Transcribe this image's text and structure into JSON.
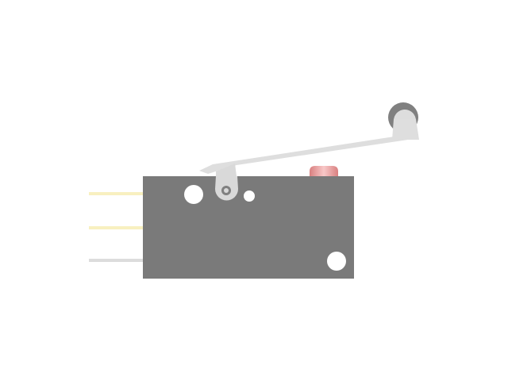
{
  "component": {
    "kind": "micro-switch-with-roller-lever",
    "icon": "roller-lever-microswitch-icon"
  },
  "colors": {
    "background": "#ffffff",
    "body": "#7a7a7a",
    "lever": "#dedede",
    "pivot_bracket": "#d9d9d9",
    "roller_rim": "#808080",
    "roller_face": "#dddddd",
    "hole": "#ffffff",
    "plunger_top": "#f2a6a6",
    "plunger_shadow": "#d98080",
    "plunger_stem": "#595959",
    "lead_1": "#f8f0c0",
    "lead_2": "#f8f0c0",
    "lead_3": "#dcdcdc"
  },
  "leads": [
    {
      "name": "lead-1",
      "color_key": "lead_1"
    },
    {
      "name": "lead-2",
      "color_key": "lead_2"
    },
    {
      "name": "lead-3",
      "color_key": "lead_3"
    }
  ]
}
